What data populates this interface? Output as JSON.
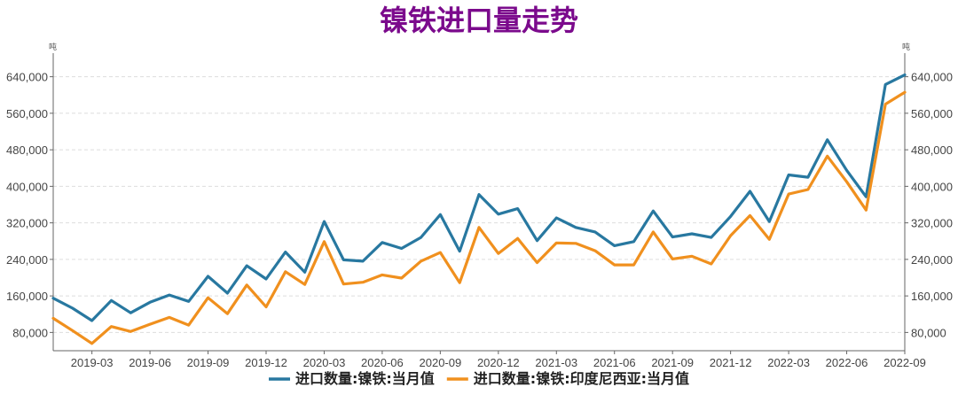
{
  "title": "镍铁进口量走势",
  "title_color": "#7b0a8c",
  "chart_data": {
    "type": "line",
    "y_unit_left": "吨",
    "y_unit_right": "吨",
    "ylim": [
      40000,
      680000
    ],
    "yticks": [
      80000,
      160000,
      240000,
      320000,
      400000,
      480000,
      560000,
      640000
    ],
    "ytick_labels": [
      "80,000",
      "160,000",
      "240,000",
      "320,000",
      "400,000",
      "480,000",
      "560,000",
      "640,000"
    ],
    "x": [
      "2019-01",
      "2019-02",
      "2019-03",
      "2019-04",
      "2019-05",
      "2019-06",
      "2019-07",
      "2019-08",
      "2019-09",
      "2019-10",
      "2019-11",
      "2019-12",
      "2020-01",
      "2020-02",
      "2020-03",
      "2020-04",
      "2020-05",
      "2020-06",
      "2020-07",
      "2020-08",
      "2020-09",
      "2020-10",
      "2020-11",
      "2020-12",
      "2021-01",
      "2021-02",
      "2021-03",
      "2021-04",
      "2021-05",
      "2021-06",
      "2021-07",
      "2021-08",
      "2021-09",
      "2021-10",
      "2021-11",
      "2021-12",
      "2022-01",
      "2022-02",
      "2022-03",
      "2022-04",
      "2022-05",
      "2022-06",
      "2022-07",
      "2022-08",
      "2022-09"
    ],
    "xtick_labels": [
      "2019-03",
      "2019-06",
      "2019-09",
      "2019-12",
      "2020-03",
      "2020-06",
      "2020-09",
      "2020-12",
      "2021-03",
      "2021-06",
      "2021-09",
      "2021-12",
      "2022-03",
      "2022-06",
      "2022-09"
    ],
    "grid": true,
    "legend_position": "bottom",
    "series": [
      {
        "name": "进口数量:镍铁:当月值",
        "color": "#2878a0",
        "values": [
          155000,
          133000,
          106000,
          150000,
          123000,
          146000,
          162000,
          148000,
          203000,
          166000,
          226000,
          197000,
          256000,
          212000,
          323000,
          239000,
          236000,
          277000,
          264000,
          288000,
          338000,
          258000,
          382000,
          339000,
          351000,
          281000,
          331000,
          310000,
          300000,
          270000,
          279000,
          346000,
          289000,
          296000,
          288000,
          334000,
          389000,
          323000,
          425000,
          420000,
          502000,
          435000,
          377000,
          623000,
          644000
        ]
      },
      {
        "name": "进口数量:镍铁:印度尼西亚:当月值",
        "color": "#f0901e",
        "values": [
          111000,
          84000,
          56000,
          93000,
          82000,
          98000,
          113000,
          96000,
          156000,
          121000,
          184000,
          136000,
          213000,
          185000,
          279000,
          186000,
          190000,
          206000,
          199000,
          236000,
          255000,
          189000,
          310000,
          253000,
          286000,
          233000,
          276000,
          275000,
          259000,
          228000,
          228000,
          300000,
          241000,
          247000,
          230000,
          292000,
          336000,
          284000,
          383000,
          393000,
          466000,
          410000,
          348000,
          580000,
          606000
        ]
      }
    ]
  }
}
